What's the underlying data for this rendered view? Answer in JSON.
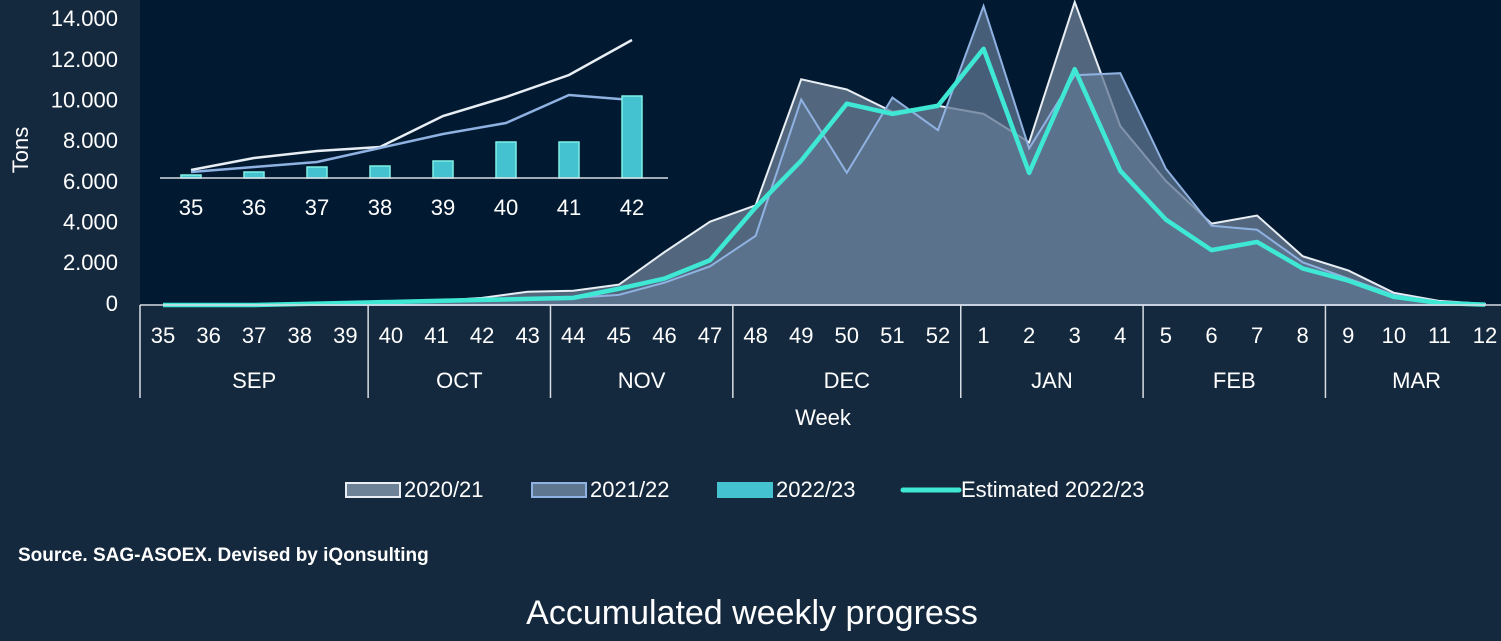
{
  "chart_data": [
    {
      "type": "area",
      "title": "Accumulated weekly progress",
      "source": "Source. SAG-ASOEX. Devised by iQonsulting",
      "xlabel": "Week",
      "ylabel": "Tons",
      "categories": [
        "35",
        "36",
        "37",
        "38",
        "39",
        "40",
        "41",
        "42",
        "43",
        "44",
        "45",
        "46",
        "47",
        "48",
        "49",
        "50",
        "51",
        "52",
        "1",
        "2",
        "3",
        "4",
        "5",
        "6",
        "7",
        "8",
        "9",
        "10",
        "11",
        "12"
      ],
      "groups": [
        {
          "label": "SEP",
          "count": 5
        },
        {
          "label": "OCT",
          "count": 4
        },
        {
          "label": "NOV",
          "count": 4
        },
        {
          "label": "DEC",
          "count": 5
        },
        {
          "label": "JAN",
          "count": 4
        },
        {
          "label": "FEB",
          "count": 4
        },
        {
          "label": "MAR",
          "count": 4
        }
      ],
      "ylim": [
        0,
        15000
      ],
      "yticks": [
        0,
        {
          "value": 2000,
          "label": "2.000"
        },
        {
          "value": 4000,
          "label": "4.000"
        },
        {
          "value": 6000,
          "label": "6.000"
        },
        {
          "value": 8000,
          "label": "8.000"
        },
        {
          "value": 10000,
          "label": "10.000"
        },
        {
          "value": 12000,
          "label": "12.000"
        },
        {
          "value": 14000,
          "label": "14.000"
        }
      ],
      "grid": false,
      "series": [
        {
          "name": "2020/21",
          "color": "#e8eef4",
          "fill": "#6d8197",
          "kind": "area",
          "values": [
            0,
            0,
            0,
            50,
            100,
            150,
            200,
            350,
            650,
            700,
            1000,
            2600,
            4100,
            4900,
            11100,
            10600,
            9500,
            9800,
            9400,
            8000,
            14900,
            8800,
            6100,
            4000,
            4400,
            2400,
            1700,
            600,
            200,
            50
          ]
        },
        {
          "name": "2021/22",
          "color": "#90b2e2",
          "fill": "#5f7691",
          "kind": "area",
          "values": [
            0,
            0,
            0,
            30,
            80,
            120,
            150,
            200,
            300,
            350,
            500,
            1100,
            1900,
            3400,
            10100,
            6500,
            10200,
            8600,
            14700,
            7700,
            11300,
            11400,
            6700,
            3900,
            3700,
            2100,
            1300,
            500,
            150,
            30
          ]
        },
        {
          "name": "Estimated 2022/23",
          "color": "#3ee8d4",
          "kind": "line",
          "values": [
            0,
            0,
            0,
            50,
            100,
            150,
            200,
            250,
            300,
            350,
            800,
            1300,
            2200,
            4800,
            7100,
            9900,
            9400,
            9800,
            12600,
            6500,
            11600,
            6600,
            4200,
            2700,
            3100,
            1800,
            1200,
            400,
            100,
            20
          ]
        }
      ]
    },
    {
      "type": "bar",
      "categories": [
        "35",
        "36",
        "37",
        "38",
        "39",
        "40",
        "41",
        "42"
      ],
      "ylim": [
        0,
        150
      ],
      "series": [
        {
          "name": "2020/21",
          "color": "#e8eef4",
          "kind": "line",
          "values": [
            8,
            20,
            27,
            31,
            62,
            81,
            103,
            138
          ]
        },
        {
          "name": "2021/22",
          "color": "#90b2e2",
          "kind": "line",
          "values": [
            6,
            11,
            16,
            30,
            44,
            55,
            83,
            78
          ]
        },
        {
          "name": "2022/23",
          "color": "#44c2cf",
          "kind": "bar",
          "values": [
            3,
            6,
            11,
            12,
            17,
            36,
            36,
            82
          ]
        }
      ]
    }
  ]
}
